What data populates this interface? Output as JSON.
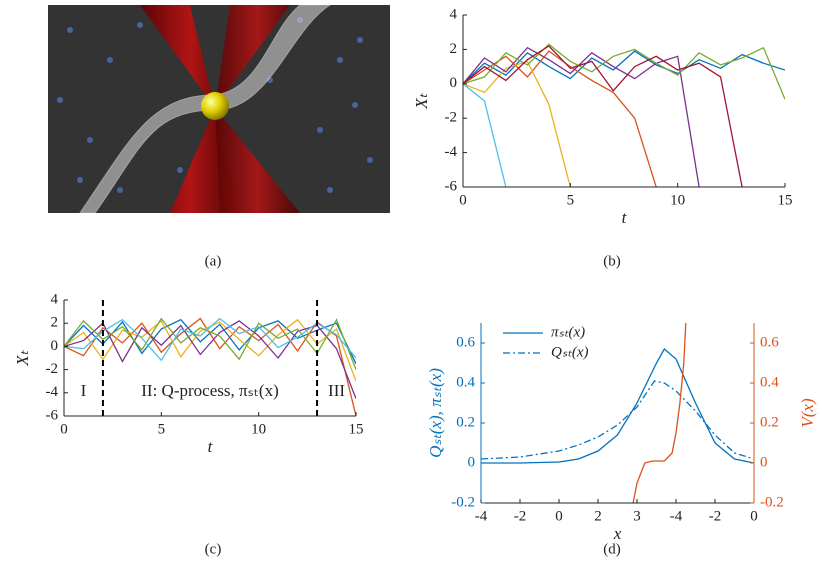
{
  "captions": [
    "(a)",
    "(b)",
    "(c)",
    "(d)"
  ],
  "chart_data": [
    {
      "type": "line",
      "xlabel": "t",
      "ylabel": "Xₜ",
      "x": [
        0,
        1,
        2,
        3,
        4,
        5,
        6,
        7,
        8,
        9,
        10,
        11,
        12,
        13,
        14,
        15
      ],
      "xlim": [
        0,
        15
      ],
      "ylim": [
        -6,
        4
      ],
      "xticks": [
        0,
        5,
        10,
        15
      ],
      "yticks": [
        -6,
        -4,
        -2,
        0,
        2,
        4
      ],
      "series": [
        {
          "color": "#0072BD",
          "values": [
            0,
            1.2,
            0.5,
            1.8,
            1.0,
            0.3,
            1.5,
            0.8,
            1.9,
            1.1,
            0.6,
            1.4,
            0.9,
            1.7,
            1.2,
            0.8
          ]
        },
        {
          "color": "#D95319",
          "values": [
            0,
            0.8,
            1.6,
            0.4,
            1.9,
            1.0,
            0.2,
            -0.5,
            -2.0,
            -6,
            null,
            null,
            null,
            null,
            null,
            null
          ]
        },
        {
          "color": "#EDB120",
          "values": [
            0,
            -0.5,
            0.9,
            1.3,
            -1.2,
            -6,
            null,
            null,
            null,
            null,
            null,
            null,
            null,
            null,
            null,
            null
          ]
        },
        {
          "color": "#7E2F8E",
          "values": [
            0,
            1.5,
            0.7,
            2.1,
            1.4,
            0.6,
            1.8,
            1.0,
            0.3,
            1.2,
            1.6,
            -6,
            null,
            null,
            null,
            null
          ]
        },
        {
          "color": "#77AC30",
          "values": [
            0,
            0.4,
            1.8,
            1.1,
            2.3,
            1.3,
            0.7,
            1.6,
            2.0,
            1.2,
            0.5,
            1.8,
            1.1,
            1.5,
            2.1,
            -0.9
          ]
        },
        {
          "color": "#4DBEEE",
          "values": [
            0,
            -1.0,
            -6,
            null,
            null,
            null,
            null,
            null,
            null,
            null,
            null,
            null,
            null,
            null,
            null,
            null
          ]
        },
        {
          "color": "#A2142F",
          "values": [
            0,
            1.0,
            0.2,
            1.4,
            2.2,
            0.9,
            1.3,
            -0.4,
            1.0,
            1.6,
            0.8,
            1.2,
            0.4,
            -6,
            null,
            null
          ]
        }
      ]
    },
    {
      "type": "line",
      "xlabel": "t",
      "ylabel": "Xₜ",
      "x": [
        0,
        1,
        2,
        3,
        4,
        5,
        6,
        7,
        8,
        9,
        10,
        11,
        12,
        13,
        14,
        15
      ],
      "xlim": [
        0,
        15
      ],
      "ylim": [
        -6,
        4
      ],
      "xticks": [
        0,
        5,
        10,
        15
      ],
      "yticks": [
        -6,
        -4,
        -2,
        0,
        2,
        4
      ],
      "vlines": [
        2,
        13
      ],
      "annotations": [
        "I",
        "II: Q-process, πₛₜ(x)",
        "III"
      ],
      "series": [
        {
          "color": "#0072BD",
          "values": [
            0,
            1.8,
            0.2,
            2.1,
            -0.6,
            1.5,
            2.3,
            0.4,
            1.9,
            -0.3,
            1.6,
            2.2,
            0.7,
            1.4,
            2.0,
            -1.5
          ]
        },
        {
          "color": "#D95319",
          "values": [
            0,
            -0.8,
            1.6,
            0.3,
            2.0,
            -0.5,
            1.1,
            2.4,
            -0.2,
            1.7,
            0.5,
            1.9,
            -0.4,
            2.1,
            0.9,
            -6
          ]
        },
        {
          "color": "#EDB120",
          "values": [
            0,
            1.2,
            -1.1,
            1.4,
            0.8,
            2.2,
            -0.9,
            1.3,
            2.1,
            0.6,
            -0.8,
            1.0,
            2.3,
            0.2,
            1.5,
            -3
          ]
        },
        {
          "color": "#7E2F8E",
          "values": [
            0,
            0.5,
            2.0,
            -1.3,
            1.6,
            0.1,
            1.8,
            -0.7,
            1.2,
            2.2,
            0.9,
            -1.0,
            1.3,
            1.8,
            -0.2,
            -4.5
          ]
        },
        {
          "color": "#77AC30",
          "values": [
            0,
            2.2,
            0.6,
            1.7,
            -0.3,
            2.4,
            0.3,
            1.6,
            0.9,
            -1.1,
            2.0,
            0.7,
            1.5,
            -0.6,
            2.3,
            -2
          ]
        },
        {
          "color": "#4DBEEE",
          "values": [
            0,
            -0.2,
            1.3,
            2.3,
            0.7,
            -1.2,
            1.5,
            0.9,
            2.4,
            1.1,
            1.7,
            -0.1,
            0.8,
            2.0,
            1.0,
            -1
          ]
        }
      ]
    },
    {
      "type": "line",
      "xlabel": "x",
      "ylabel": "Qₛₜ(x), πₛₜ(x)",
      "y2label": "V(x)",
      "xlim": [
        0,
        7
      ],
      "ylim": [
        -0.2,
        0.7
      ],
      "y2lim": [
        -0.2,
        0.7
      ],
      "xticks": [
        {
          "value": 0,
          "label": "-4"
        },
        {
          "value": 1,
          "label": "-2"
        },
        {
          "value": 2,
          "label": "0"
        },
        {
          "value": 3,
          "label": "2"
        },
        {
          "value": 4,
          "label": "3"
        },
        {
          "value": 5,
          "label": "-4"
        },
        {
          "value": 6,
          "label": "-2"
        },
        {
          "value": 7,
          "label": "0"
        }
      ],
      "yticks": [
        -0.2,
        0,
        0.2,
        0.4,
        0.6
      ],
      "y2ticks": [
        -0.2,
        0,
        0.2,
        0.4,
        0.6
      ],
      "ycolor": "#0072BD",
      "y2color": "#D95319",
      "series": [
        {
          "name": "πₛₜ(x)",
          "color": "#0072BD",
          "style": "solid",
          "x": [
            0,
            1,
            2,
            2.5,
            3,
            3.5,
            4,
            4.5,
            4.7,
            5,
            5.5,
            6,
            6.5,
            7
          ],
          "values": [
            0,
            0,
            0.005,
            0.02,
            0.06,
            0.14,
            0.3,
            0.5,
            0.57,
            0.52,
            0.3,
            0.1,
            0.02,
            0
          ]
        },
        {
          "name": "Qₛₜ(x)",
          "color": "#0072BD",
          "style": "dashdot",
          "x": [
            0,
            1,
            2,
            2.5,
            3,
            3.5,
            4,
            4.45,
            4.7,
            5,
            5.5,
            6,
            6.5,
            7
          ],
          "values": [
            0.02,
            0.03,
            0.06,
            0.09,
            0.13,
            0.19,
            0.28,
            0.41,
            0.4,
            0.36,
            0.26,
            0.14,
            0.05,
            0.02
          ]
        },
        {
          "color": "#D95319",
          "style": "solid",
          "axis": "y2",
          "x": [
            3.9,
            4.0,
            4.2,
            4.4,
            4.7,
            4.9,
            5.0,
            5.1,
            5.2,
            5.25
          ],
          "values": [
            -0.2,
            -0.1,
            0.0,
            0.01,
            0.01,
            0.05,
            0.15,
            0.3,
            0.5,
            0.7
          ]
        }
      ]
    }
  ]
}
